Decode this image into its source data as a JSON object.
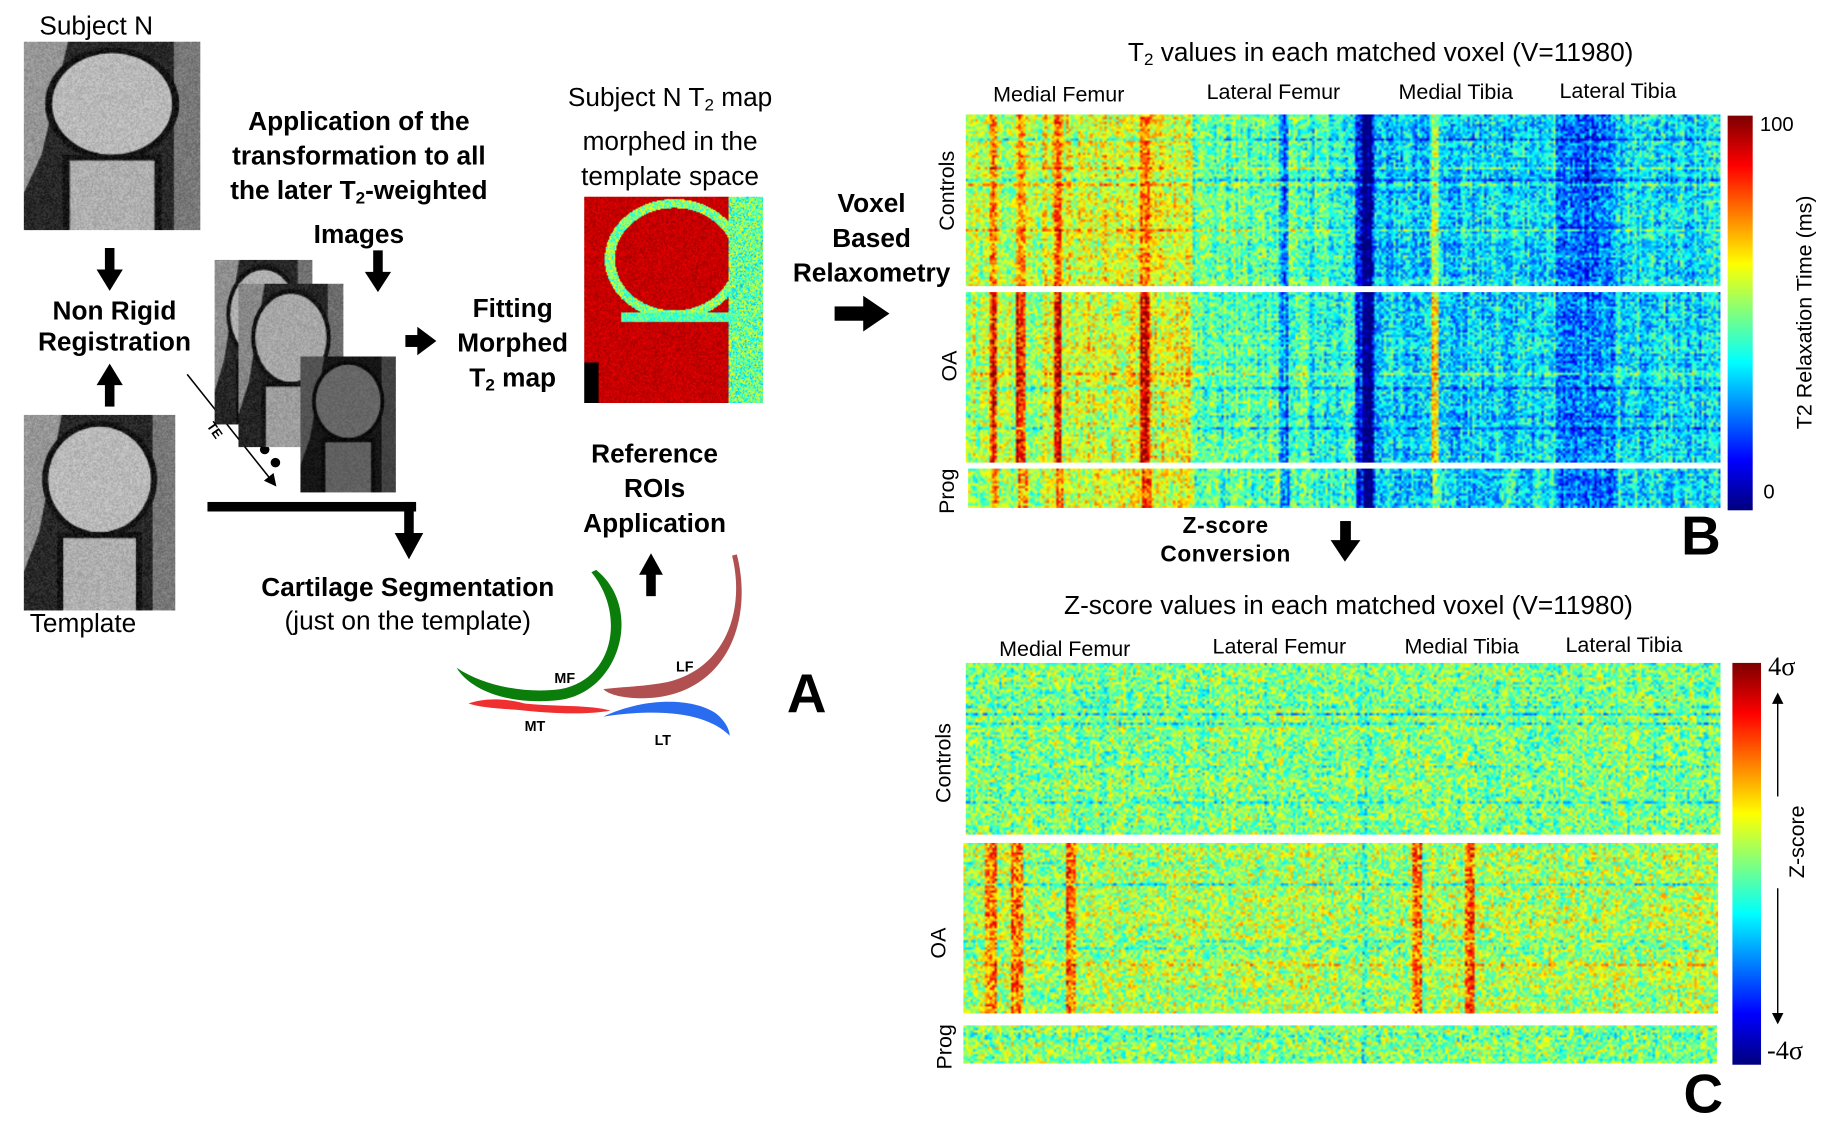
{
  "panel_a": {
    "subject_label": "Subject N",
    "template_label": "Template",
    "registration": [
      "Non Rigid",
      "Registration"
    ],
    "application": {
      "line1": "Application of the",
      "line2": "transformation to all",
      "line3_pre": "the later T",
      "line3_sub": "2",
      "line3_post": "-weighted",
      "line4": "Images"
    },
    "te_label": "TE",
    "fitting": {
      "line1": "Fitting",
      "line2": "Morphed",
      "line3_pre": "T",
      "line3_sub": "2",
      "line3_post": " map"
    },
    "morphed_map": {
      "line1_pre": "Subject N T",
      "line1_sub": "2",
      "line1_post": " map",
      "line2": "morphed in the",
      "line3": "template space"
    },
    "voxel": [
      "Voxel",
      "Based",
      "Relaxometry"
    ],
    "reference": [
      "Reference",
      "ROIs",
      "Application"
    ],
    "segmentation": [
      "Cartilage Segmentation",
      "(just on the template)"
    ],
    "roi_labels": {
      "mf": "MF",
      "lf": "LF",
      "mt": "MT",
      "lt": "LT"
    },
    "roi_colors": {
      "mf": "#0a7d0a",
      "lf": "#b05050",
      "mt": "#f03030",
      "lt": "#2a6cf0"
    },
    "panel_letter": "A"
  },
  "panel_b": {
    "title_pre": "T",
    "title_sub": "2",
    "title_post": " values in each matched voxel (V=11980)",
    "regions": [
      "Medial Femur",
      "Lateral Femur",
      "Medial Tibia",
      "Lateral Tibia"
    ],
    "groups": [
      "Controls",
      "OA",
      "Prog"
    ],
    "colorbar": {
      "max_label": "100",
      "min_label": "0",
      "title": "T2 Relaxation Time (ms)",
      "colormap": "jet"
    },
    "panel_letter": "B"
  },
  "conversion": [
    "Z-score",
    "Conversion"
  ],
  "panel_c": {
    "title": "Z-score values in each matched voxel (V=11980)",
    "regions": [
      "Medial Femur",
      "Lateral Femur",
      "Medial Tibia",
      "Lateral Tibia"
    ],
    "groups": [
      "Controls",
      "OA",
      "Prog"
    ],
    "colorbar": {
      "max_label": "4σ",
      "min_label": "-4σ",
      "title": "Z-score",
      "colormap": "jet"
    },
    "panel_letter": "C"
  }
}
